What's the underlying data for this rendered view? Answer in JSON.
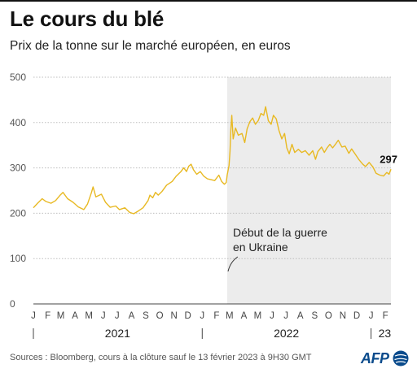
{
  "header": {
    "title": "Le cours du blé",
    "subtitle": "Prix de la tonne sur le marché européen, en euros"
  },
  "source": "Sources : Bloomberg, cours à la clôture sauf le 13 février 2023 à 9H30 GMT",
  "logo": {
    "text": "AFP",
    "icon": "globe-icon"
  },
  "colors": {
    "line": "#e8b923",
    "shade": "#ececec",
    "grid": "#bdbdbd",
    "text": "#222222",
    "logo": "#0a4b8c"
  },
  "chart_data": {
    "type": "line",
    "title": "Le cours du blé",
    "subtitle": "Prix de la tonne sur le marché européen, en euros",
    "unit": "euros par tonne",
    "ylim": [
      0,
      500
    ],
    "yticks": [
      0,
      100,
      200,
      300,
      400,
      500
    ],
    "ytick_labels": [
      "0",
      "100",
      "200",
      "300",
      "400",
      "500"
    ],
    "xlim": [
      "2021-01-01",
      "2023-02-13"
    ],
    "month_labels": [
      {
        "label": "J",
        "date": "2021-01-01"
      },
      {
        "label": "F",
        "date": "2021-02-01"
      },
      {
        "label": "M",
        "date": "2021-03-01"
      },
      {
        "label": "A",
        "date": "2021-04-01"
      },
      {
        "label": "M",
        "date": "2021-05-01"
      },
      {
        "label": "J",
        "date": "2021-06-01"
      },
      {
        "label": "J",
        "date": "2021-07-01"
      },
      {
        "label": "A",
        "date": "2021-08-01"
      },
      {
        "label": "S",
        "date": "2021-09-01"
      },
      {
        "label": "O",
        "date": "2021-10-01"
      },
      {
        "label": "N",
        "date": "2021-11-01"
      },
      {
        "label": "D",
        "date": "2021-12-01"
      },
      {
        "label": "J",
        "date": "2022-01-01"
      },
      {
        "label": "F",
        "date": "2022-02-01"
      },
      {
        "label": "M",
        "date": "2022-03-01"
      },
      {
        "label": "A",
        "date": "2022-04-01"
      },
      {
        "label": "M",
        "date": "2022-05-01"
      },
      {
        "label": "J",
        "date": "2022-06-01"
      },
      {
        "label": "J",
        "date": "2022-07-01"
      },
      {
        "label": "A",
        "date": "2022-08-01"
      },
      {
        "label": "S",
        "date": "2022-09-01"
      },
      {
        "label": "O",
        "date": "2022-10-01"
      },
      {
        "label": "N",
        "date": "2022-11-01"
      },
      {
        "label": "D",
        "date": "2022-12-01"
      },
      {
        "label": "J",
        "date": "2023-01-01"
      },
      {
        "label": "F",
        "date": "2023-02-01"
      }
    ],
    "years": [
      {
        "label": "2021",
        "start": "2021-01-01",
        "end": "2021-12-31"
      },
      {
        "label": "2022",
        "start": "2022-01-01",
        "end": "2022-12-31"
      },
      {
        "label": "23",
        "start": "2023-01-01",
        "end": "2023-02-13"
      }
    ],
    "shaded_region": {
      "start": "2022-02-24",
      "end": "2023-02-13"
    },
    "annotation": {
      "text_lines": [
        "Début de la guerre",
        "en Ukraine"
      ],
      "date": "2022-02-24"
    },
    "last_value_label": "297",
    "grid": true,
    "series": [
      {
        "values": [
          [
            "2021-01-01",
            212
          ],
          [
            "2021-01-10",
            222
          ],
          [
            "2021-01-20",
            232
          ],
          [
            "2021-01-28",
            226
          ],
          [
            "2021-02-08",
            222
          ],
          [
            "2021-02-18",
            228
          ],
          [
            "2021-02-28",
            240
          ],
          [
            "2021-03-06",
            246
          ],
          [
            "2021-03-16",
            232
          ],
          [
            "2021-03-28",
            224
          ],
          [
            "2021-04-08",
            214
          ],
          [
            "2021-04-20",
            208
          ],
          [
            "2021-04-28",
            220
          ],
          [
            "2021-05-06",
            244
          ],
          [
            "2021-05-10",
            258
          ],
          [
            "2021-05-16",
            236
          ],
          [
            "2021-05-28",
            242
          ],
          [
            "2021-06-06",
            224
          ],
          [
            "2021-06-16",
            213
          ],
          [
            "2021-06-28",
            216
          ],
          [
            "2021-07-06",
            208
          ],
          [
            "2021-07-18",
            212
          ],
          [
            "2021-07-28",
            202
          ],
          [
            "2021-08-06",
            199
          ],
          [
            "2021-08-16",
            205
          ],
          [
            "2021-08-26",
            212
          ],
          [
            "2021-09-06",
            228
          ],
          [
            "2021-09-10",
            240
          ],
          [
            "2021-09-16",
            234
          ],
          [
            "2021-09-22",
            246
          ],
          [
            "2021-09-28",
            240
          ],
          [
            "2021-10-06",
            248
          ],
          [
            "2021-10-16",
            262
          ],
          [
            "2021-10-28",
            270
          ],
          [
            "2021-11-06",
            282
          ],
          [
            "2021-11-16",
            292
          ],
          [
            "2021-11-22",
            300
          ],
          [
            "2021-11-28",
            292
          ],
          [
            "2021-12-03",
            304
          ],
          [
            "2021-12-08",
            308
          ],
          [
            "2021-12-13",
            296
          ],
          [
            "2021-12-20",
            286
          ],
          [
            "2021-12-28",
            292
          ],
          [
            "2022-01-04",
            282
          ],
          [
            "2022-01-12",
            276
          ],
          [
            "2022-01-20",
            274
          ],
          [
            "2022-01-28",
            272
          ],
          [
            "2022-02-06",
            284
          ],
          [
            "2022-02-12",
            270
          ],
          [
            "2022-02-18",
            264
          ],
          [
            "2022-02-22",
            268
          ],
          [
            "2022-02-24",
            285
          ],
          [
            "2022-02-28",
            305
          ],
          [
            "2022-03-02",
            336
          ],
          [
            "2022-03-04",
            386
          ],
          [
            "2022-03-06",
            416
          ],
          [
            "2022-03-09",
            364
          ],
          [
            "2022-03-14",
            388
          ],
          [
            "2022-03-20",
            372
          ],
          [
            "2022-03-28",
            376
          ],
          [
            "2022-04-03",
            356
          ],
          [
            "2022-04-08",
            386
          ],
          [
            "2022-04-14",
            402
          ],
          [
            "2022-04-20",
            410
          ],
          [
            "2022-04-26",
            396
          ],
          [
            "2022-05-02",
            404
          ],
          [
            "2022-05-08",
            420
          ],
          [
            "2022-05-14",
            416
          ],
          [
            "2022-05-18",
            435
          ],
          [
            "2022-05-24",
            404
          ],
          [
            "2022-05-30",
            396
          ],
          [
            "2022-06-04",
            416
          ],
          [
            "2022-06-10",
            408
          ],
          [
            "2022-06-16",
            382
          ],
          [
            "2022-06-22",
            364
          ],
          [
            "2022-06-28",
            376
          ],
          [
            "2022-07-03",
            344
          ],
          [
            "2022-07-08",
            331
          ],
          [
            "2022-07-14",
            352
          ],
          [
            "2022-07-20",
            334
          ],
          [
            "2022-07-28",
            341
          ],
          [
            "2022-08-04",
            334
          ],
          [
            "2022-08-12",
            338
          ],
          [
            "2022-08-20",
            328
          ],
          [
            "2022-08-28",
            338
          ],
          [
            "2022-09-03",
            319
          ],
          [
            "2022-09-08",
            336
          ],
          [
            "2022-09-16",
            346
          ],
          [
            "2022-09-22",
            334
          ],
          [
            "2022-09-28",
            344
          ],
          [
            "2022-10-04",
            352
          ],
          [
            "2022-10-10",
            344
          ],
          [
            "2022-10-16",
            352
          ],
          [
            "2022-10-22",
            361
          ],
          [
            "2022-10-30",
            346
          ],
          [
            "2022-11-06",
            348
          ],
          [
            "2022-11-14",
            332
          ],
          [
            "2022-11-20",
            342
          ],
          [
            "2022-11-28",
            330
          ],
          [
            "2022-12-06",
            318
          ],
          [
            "2022-12-14",
            308
          ],
          [
            "2022-12-20",
            303
          ],
          [
            "2022-12-28",
            312
          ],
          [
            "2023-01-05",
            302
          ],
          [
            "2023-01-12",
            288
          ],
          [
            "2023-01-20",
            284
          ],
          [
            "2023-01-28",
            282
          ],
          [
            "2023-02-04",
            290
          ],
          [
            "2023-02-09",
            286
          ],
          [
            "2023-02-13",
            297
          ]
        ]
      }
    ]
  }
}
